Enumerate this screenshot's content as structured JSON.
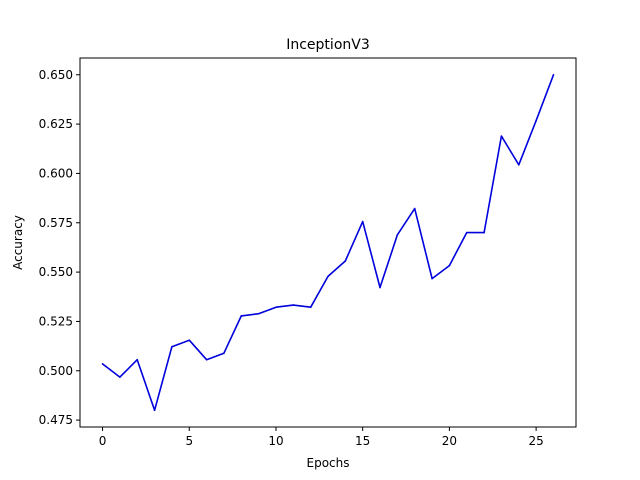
{
  "chart_data": {
    "type": "line",
    "title": "InceptionV3",
    "xlabel": "Epochs",
    "ylabel": "Accuracy",
    "xlim": [
      -1.3,
      27.3
    ],
    "ylim": [
      0.4715,
      0.6585
    ],
    "xticks": [
      0,
      5,
      10,
      15,
      20,
      25
    ],
    "yticks": [
      0.475,
      0.5,
      0.525,
      0.55,
      0.575,
      0.6,
      0.625,
      0.65
    ],
    "ytick_labels": [
      "0.475",
      "0.500",
      "0.525",
      "0.550",
      "0.575",
      "0.600",
      "0.625",
      "0.650"
    ],
    "grid": false,
    "series": [
      {
        "color": "#0000dd",
        "x": [
          0,
          1,
          2,
          3,
          4,
          5,
          6,
          7,
          8,
          9,
          10,
          11,
          12,
          13,
          14,
          15,
          16,
          17,
          18,
          19,
          20,
          21,
          22,
          23,
          24,
          25,
          26
        ],
        "y": [
          0.5035,
          0.4968,
          0.5056,
          0.48,
          0.5122,
          0.5155,
          0.5056,
          0.5089,
          0.5278,
          0.5289,
          0.5322,
          0.5333,
          0.5322,
          0.5478,
          0.5556,
          0.5756,
          0.5422,
          0.5689,
          0.5822,
          0.5467,
          0.5533,
          0.57,
          0.57,
          0.6189,
          0.6044,
          0.6267,
          0.65
        ]
      }
    ]
  }
}
